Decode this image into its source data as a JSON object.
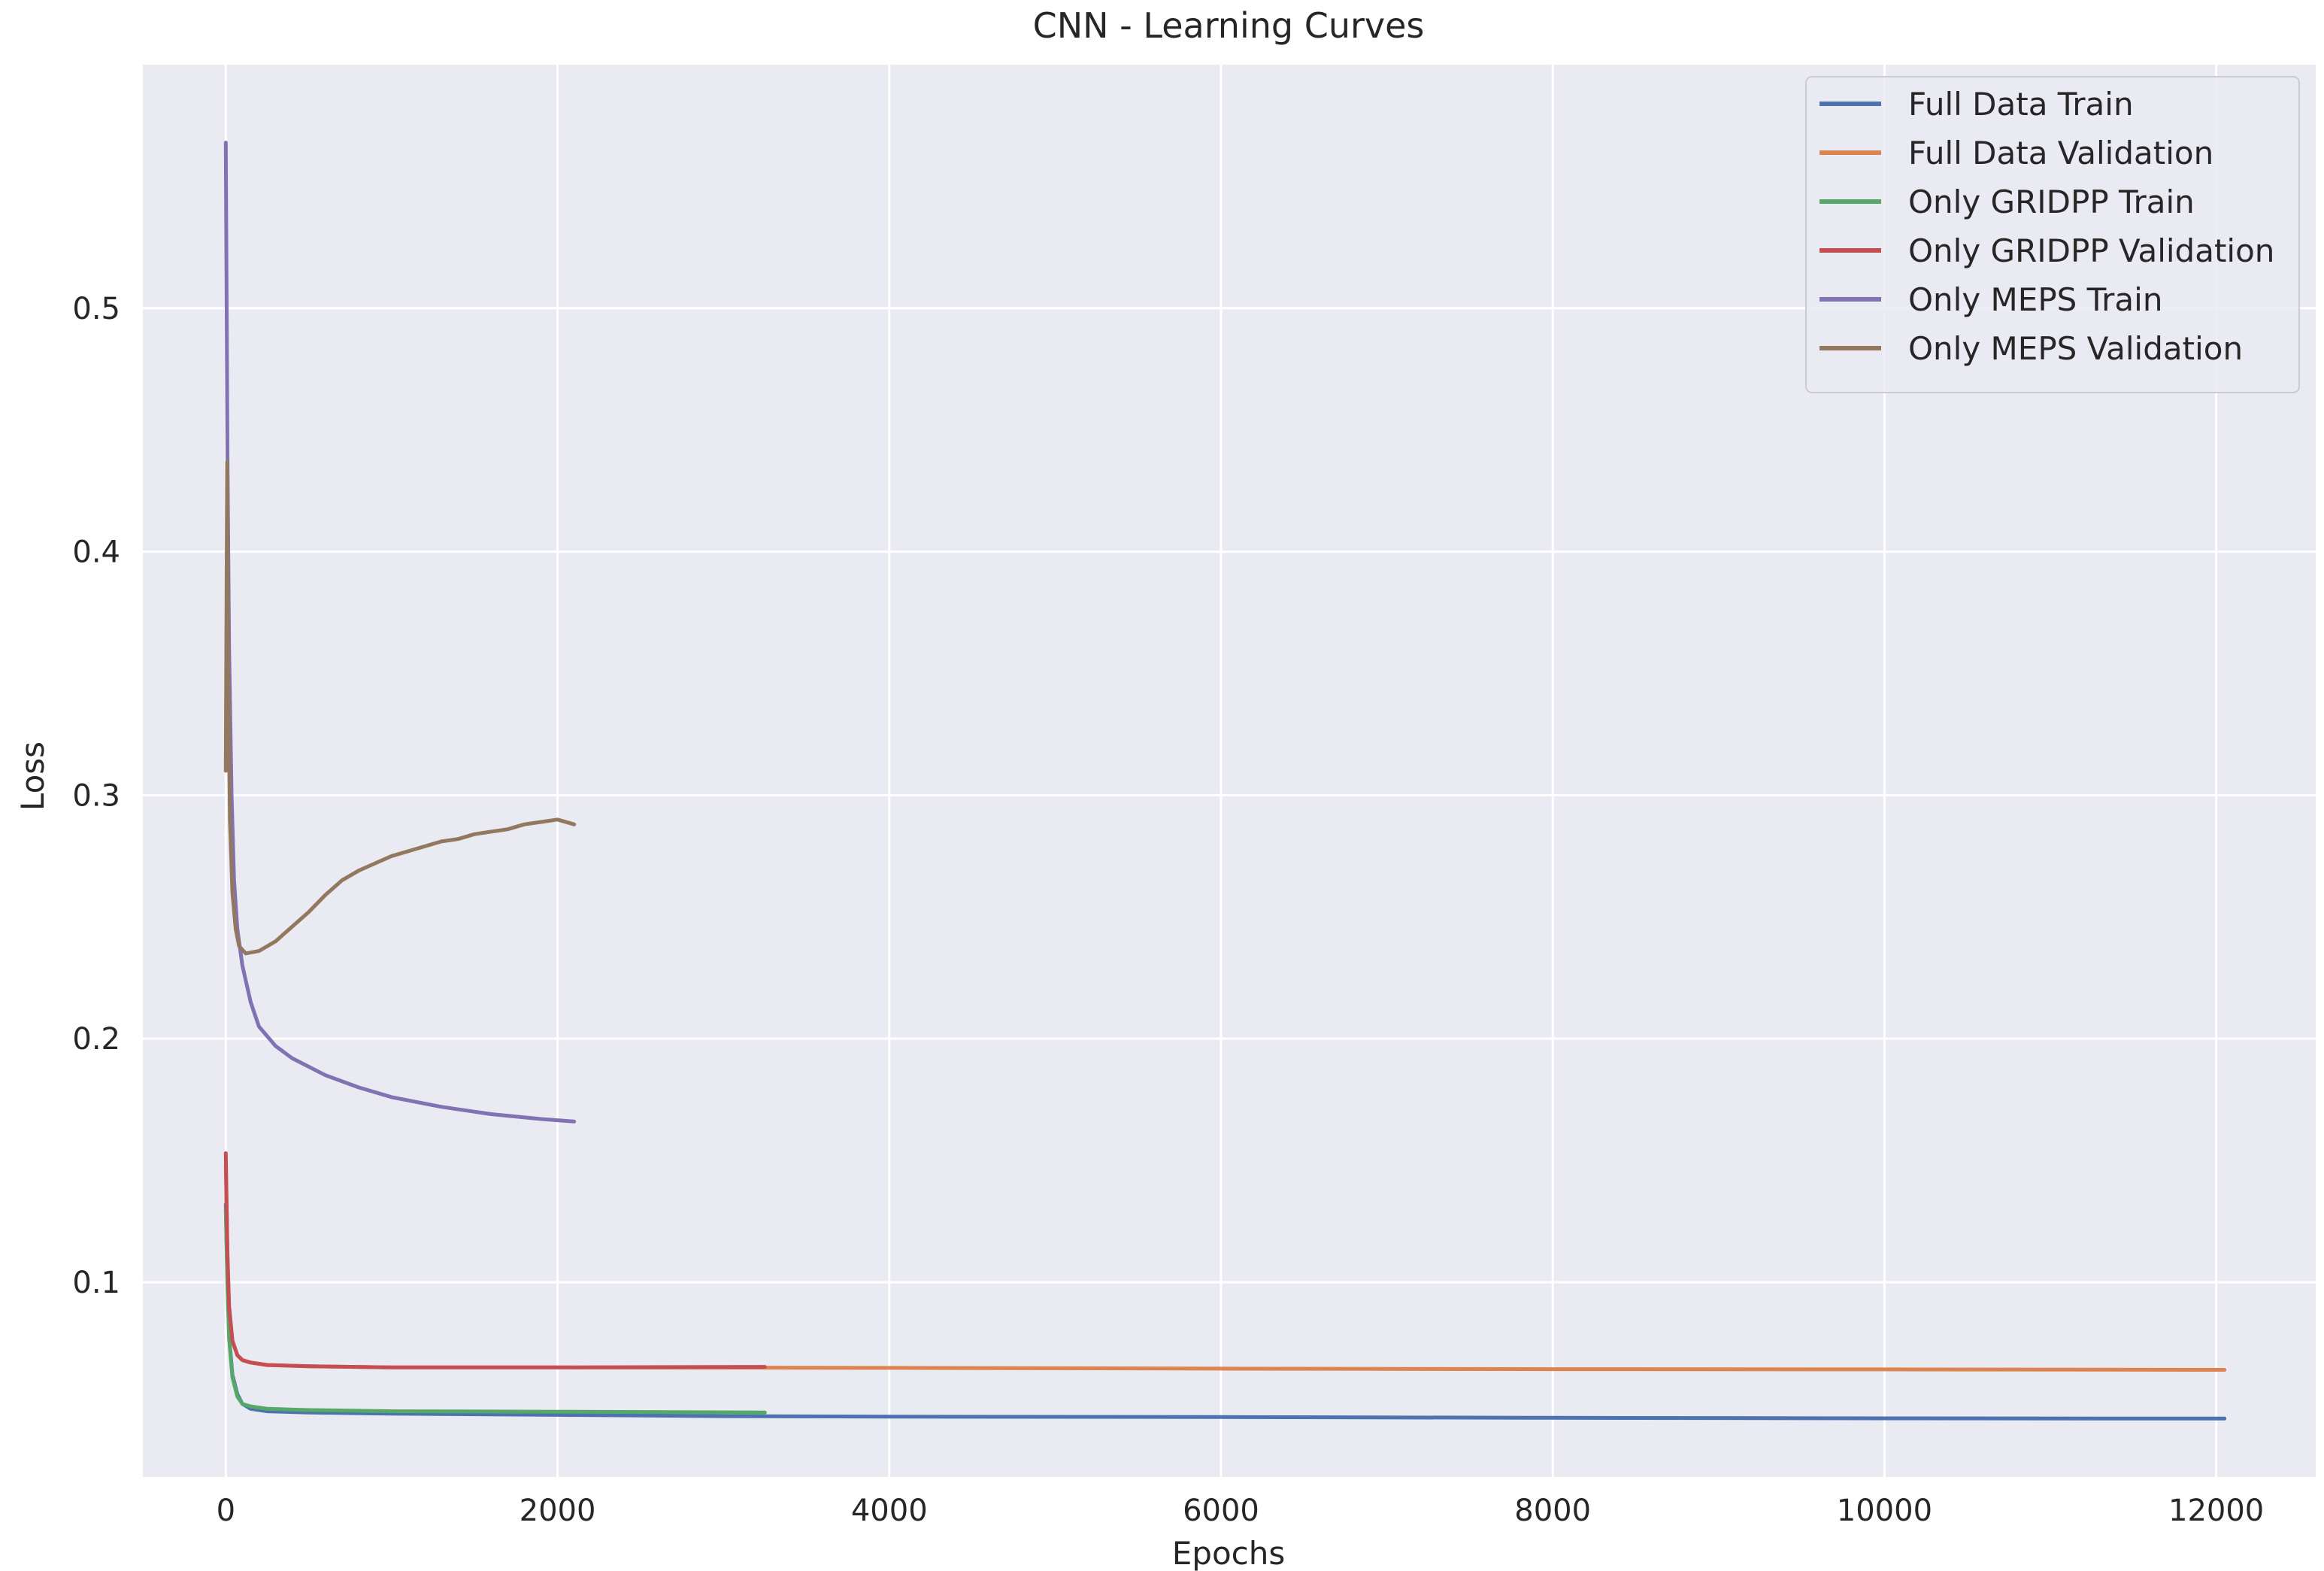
{
  "chart_data": {
    "type": "line",
    "title": "CNN - Learning Curves",
    "xlabel": "Epochs",
    "ylabel": "Loss",
    "xlim": [
      -500,
      12600
    ],
    "ylim": [
      0.02,
      0.6
    ],
    "x_ticks": [
      0,
      2000,
      4000,
      6000,
      8000,
      10000,
      12000
    ],
    "y_ticks": [
      0.1,
      0.2,
      0.3,
      0.4,
      0.5
    ],
    "grid": true,
    "legend": "top-right",
    "background": "#eaeaf2",
    "series": [
      {
        "name": "Full Data Train",
        "color": "#4c72b0",
        "points": [
          [
            0,
            0.132
          ],
          [
            10,
            0.1
          ],
          [
            20,
            0.078
          ],
          [
            40,
            0.062
          ],
          [
            70,
            0.054
          ],
          [
            100,
            0.05
          ],
          [
            150,
            0.048
          ],
          [
            250,
            0.047
          ],
          [
            500,
            0.0465
          ],
          [
            1000,
            0.046
          ],
          [
            2000,
            0.0455
          ],
          [
            3000,
            0.045
          ],
          [
            4000,
            0.0448
          ],
          [
            6000,
            0.0446
          ],
          [
            8000,
            0.0443
          ],
          [
            10000,
            0.0441
          ],
          [
            12050,
            0.044
          ]
        ]
      },
      {
        "name": "Full Data Validation",
        "color": "#dd8452",
        "points": [
          [
            0,
            0.148
          ],
          [
            10,
            0.11
          ],
          [
            20,
            0.09
          ],
          [
            40,
            0.076
          ],
          [
            70,
            0.07
          ],
          [
            100,
            0.068
          ],
          [
            150,
            0.067
          ],
          [
            250,
            0.066
          ],
          [
            500,
            0.0655
          ],
          [
            1000,
            0.065
          ],
          [
            2000,
            0.065
          ],
          [
            4000,
            0.0648
          ],
          [
            6000,
            0.0645
          ],
          [
            8000,
            0.0643
          ],
          [
            10000,
            0.0642
          ],
          [
            12050,
            0.064
          ]
        ]
      },
      {
        "name": "Only GRIDPP Train",
        "color": "#55a868",
        "points": [
          [
            0,
            0.13
          ],
          [
            10,
            0.098
          ],
          [
            20,
            0.077
          ],
          [
            40,
            0.061
          ],
          [
            70,
            0.053
          ],
          [
            100,
            0.05
          ],
          [
            150,
            0.049
          ],
          [
            250,
            0.048
          ],
          [
            500,
            0.0475
          ],
          [
            1000,
            0.047
          ],
          [
            2000,
            0.0468
          ],
          [
            3250,
            0.0465
          ]
        ]
      },
      {
        "name": "Only GRIDPP Validation",
        "color": "#c44e52",
        "points": [
          [
            0,
            0.153
          ],
          [
            10,
            0.112
          ],
          [
            20,
            0.09
          ],
          [
            40,
            0.076
          ],
          [
            70,
            0.07
          ],
          [
            100,
            0.068
          ],
          [
            150,
            0.067
          ],
          [
            250,
            0.066
          ],
          [
            500,
            0.0655
          ],
          [
            1000,
            0.065
          ],
          [
            2000,
            0.065
          ],
          [
            3250,
            0.0652
          ]
        ]
      },
      {
        "name": "Only MEPS Train",
        "color": "#8172b3",
        "points": [
          [
            0,
            0.568
          ],
          [
            10,
            0.44
          ],
          [
            20,
            0.36
          ],
          [
            35,
            0.3
          ],
          [
            50,
            0.265
          ],
          [
            70,
            0.245
          ],
          [
            100,
            0.23
          ],
          [
            150,
            0.215
          ],
          [
            200,
            0.205
          ],
          [
            300,
            0.197
          ],
          [
            400,
            0.192
          ],
          [
            600,
            0.185
          ],
          [
            800,
            0.18
          ],
          [
            1000,
            0.176
          ],
          [
            1300,
            0.172
          ],
          [
            1600,
            0.169
          ],
          [
            1900,
            0.167
          ],
          [
            2100,
            0.166
          ]
        ]
      },
      {
        "name": "Only MEPS Validation",
        "color": "#937860",
        "points": [
          [
            0,
            0.31
          ],
          [
            8,
            0.437
          ],
          [
            15,
            0.35
          ],
          [
            25,
            0.29
          ],
          [
            40,
            0.26
          ],
          [
            60,
            0.245
          ],
          [
            80,
            0.238
          ],
          [
            120,
            0.235
          ],
          [
            200,
            0.236
          ],
          [
            300,
            0.24
          ],
          [
            400,
            0.246
          ],
          [
            500,
            0.252
          ],
          [
            600,
            0.259
          ],
          [
            700,
            0.265
          ],
          [
            800,
            0.269
          ],
          [
            900,
            0.272
          ],
          [
            1000,
            0.275
          ],
          [
            1100,
            0.277
          ],
          [
            1200,
            0.279
          ],
          [
            1300,
            0.281
          ],
          [
            1400,
            0.282
          ],
          [
            1500,
            0.284
          ],
          [
            1600,
            0.285
          ],
          [
            1700,
            0.286
          ],
          [
            1800,
            0.288
          ],
          [
            1900,
            0.289
          ],
          [
            2000,
            0.29
          ],
          [
            2100,
            0.288
          ]
        ]
      }
    ]
  }
}
